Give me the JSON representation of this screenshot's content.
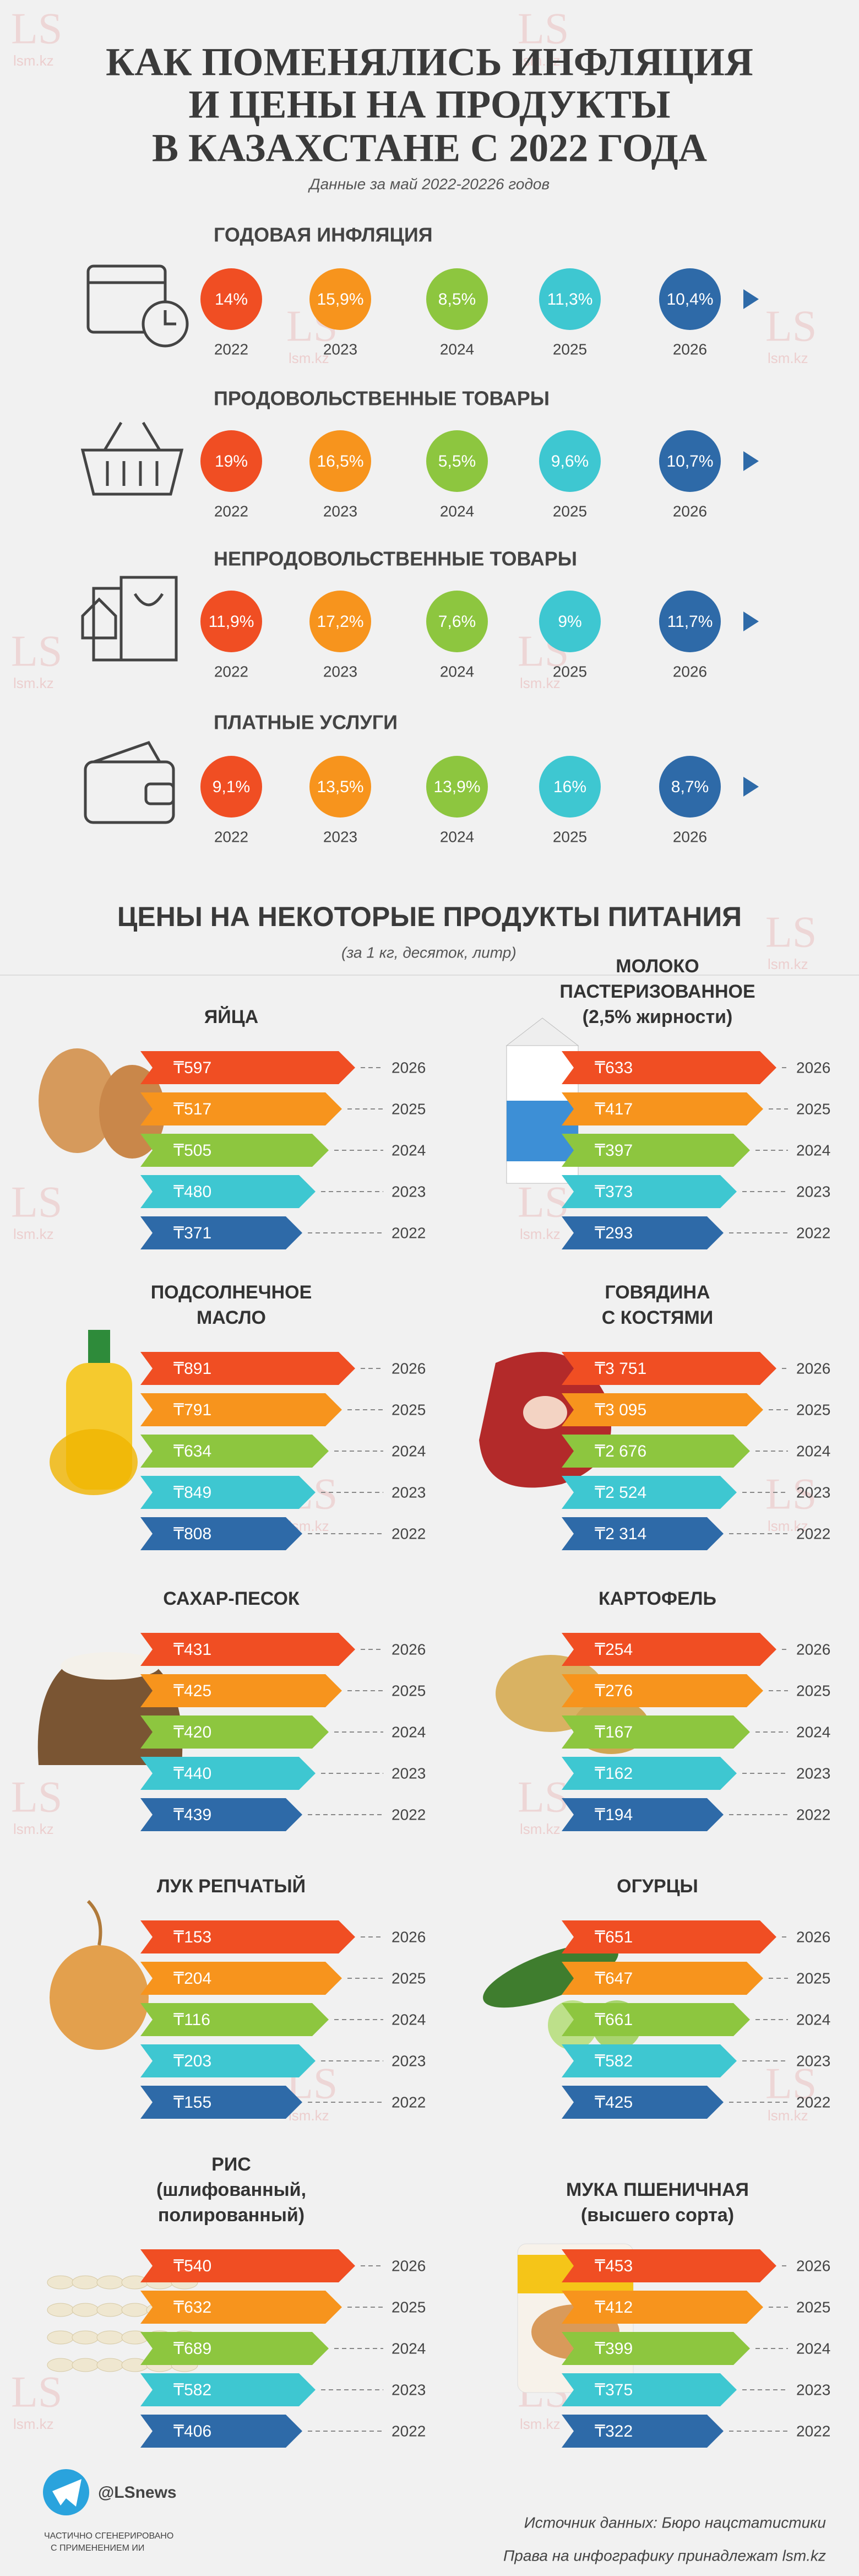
{
  "header": {
    "title": [
      "КАК ПОМЕНЯЛИСЬ ИНФЛЯЦИЯ",
      "И ЦЕНЫ НА ПРОДУКТЫ",
      "В КАЗАХСТАНЕ С 2022 ГОДА"
    ],
    "subtitle": "Данные за май 2022-20226 годов"
  },
  "watermark": [
    "LS",
    "lsm.kz"
  ],
  "inflation": {
    "years": [
      "2022",
      "2023",
      "2024",
      "2025",
      "2026"
    ],
    "rows": [
      {
        "name": "ГОДОВАЯ ИНФЛЯЦИЯ",
        "values": [
          "14%",
          "15,9%",
          "8,5%",
          "11,3%",
          "10,4%"
        ]
      },
      {
        "name": "ПРОДОВОЛЬСТВЕННЫЕ ТОВАРЫ",
        "values": [
          "19%",
          "16,5%",
          "5,5%",
          "9,6%",
          "10,7%"
        ]
      },
      {
        "name": "НЕПРОДОВОЛЬСТВЕННЫЕ ТОВАРЫ",
        "values": [
          "11,9%",
          "17,2%",
          "7,6%",
          "9%",
          "11,7%"
        ]
      },
      {
        "name": "ПЛАТНЫЕ УСЛУГИ",
        "values": [
          "9,1%",
          "13,5%",
          "13,9%",
          "16%",
          "8,7%"
        ]
      }
    ]
  },
  "prices": {
    "title": "ЦЕНЫ НА НЕКОТОРЫЕ ПРОДУКТЫ ПИТАНИЯ",
    "note": "(за 1 кг, десяток, литр)",
    "years": [
      "2026",
      "2025",
      "2024",
      "2023",
      "2022"
    ],
    "products": [
      {
        "name": [
          "ЯЙЦА"
        ],
        "values": [
          "₸597",
          "₸517",
          "₸505",
          "₸480",
          "₸371"
        ]
      },
      {
        "name": [
          "МОЛОКО",
          "ПАСТЕРИЗОВАННОЕ",
          "(2,5% жирности)"
        ],
        "values": [
          "₸633",
          "₸417",
          "₸397",
          "₸373",
          "₸293"
        ]
      },
      {
        "name": [
          "ПОДСОЛНЕЧНОЕ",
          "МАСЛО"
        ],
        "values": [
          "₸891",
          "₸791",
          "₸634",
          "₸849",
          "₸808"
        ]
      },
      {
        "name": [
          "ГОВЯДИНА",
          "С КОСТЯМИ"
        ],
        "values": [
          "₸3 751",
          "₸3 095",
          "₸2 676",
          "₸2 524",
          "₸2 314"
        ]
      },
      {
        "name": [
          "САХАР-ПЕСОК"
        ],
        "values": [
          "₸431",
          "₸425",
          "₸420",
          "₸440",
          "₸439"
        ]
      },
      {
        "name": [
          "КАРТОФЕЛЬ"
        ],
        "values": [
          "₸254",
          "₸276",
          "₸167",
          "₸162",
          "₸194"
        ]
      },
      {
        "name": [
          "ЛУК РЕПЧАТЫЙ"
        ],
        "values": [
          "₸153",
          "₸204",
          "₸116",
          "₸203",
          "₸155"
        ]
      },
      {
        "name": [
          "ОГУРЦЫ"
        ],
        "values": [
          "₸651",
          "₸647",
          "₸661",
          "₸582",
          "₸425"
        ]
      },
      {
        "name": [
          "РИС",
          "(шлифованный,",
          "полированный)"
        ],
        "values": [
          "₸540",
          "₸632",
          "₸689",
          "₸582",
          "₸406"
        ]
      },
      {
        "name": [
          "МУКА ПШЕНИЧНАЯ",
          "(высшего сорта)"
        ],
        "values": [
          "₸453",
          "₸412",
          "₸399",
          "₸375",
          "₸322"
        ]
      }
    ]
  },
  "footer": {
    "handle": "@LSnews",
    "ai_note": [
      "ЧАСТИЧНО СГЕНЕРИРОВАНО",
      "С ПРИМЕНЕНИЕМ ИИ"
    ],
    "source": "Источник данных: Бюро нацстатистики",
    "rights": "Права на инфографику принадлежат lsm.kz"
  }
}
